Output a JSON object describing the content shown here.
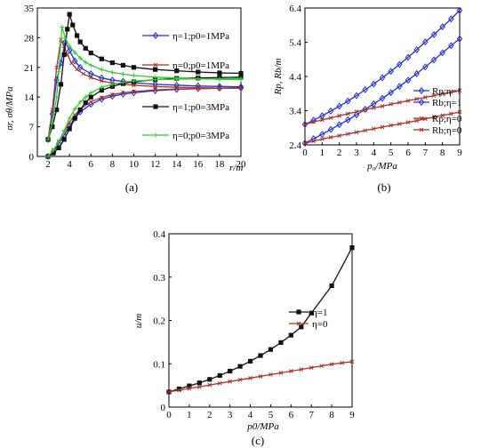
{
  "chart_data": [
    {
      "id": "a",
      "panel_label": "(a)",
      "type": "line",
      "xlabel": "r/m",
      "ylabel": "σr, σθ/MPa",
      "xlim": [
        1,
        20
      ],
      "ylim": [
        0,
        35
      ],
      "xticks": [
        "2",
        "4",
        "6",
        "8",
        "10",
        "12",
        "14",
        "16",
        "18",
        "20"
      ],
      "yticks": [
        "0",
        "7",
        "14",
        "21",
        "28",
        "35"
      ],
      "legend": [
        {
          "label": "η=1;p0=1MPa",
          "color": "#1f2fd6"
        },
        {
          "label": "η=0;p0=1MPa",
          "color": "#a8332b"
        },
        {
          "label": "η=1;p0=3MPa",
          "color": "#111111"
        },
        {
          "label": "η=0;p0=3MPa",
          "color": "#33cc33"
        }
      ],
      "series": [
        {
          "name": "η=1;p0=1MPa",
          "color": "#1f2fd6",
          "marker": "diamond",
          "x": [
            2,
            2.4,
            2.8,
            3.2,
            3.6,
            4,
            4.5,
            5,
            6,
            7,
            8,
            9,
            10,
            12,
            14,
            16,
            18,
            20
          ],
          "y": [
            4,
            10,
            18,
            22,
            27,
            25,
            22.5,
            21,
            19.5,
            18.5,
            18,
            17.7,
            17.4,
            17,
            16.8,
            16.6,
            16.5,
            16.4
          ]
        },
        {
          "name": "",
          "color": "#1f2fd6",
          "marker": "diamond",
          "x": [
            2,
            2.5,
            3,
            3.5,
            4,
            4.5,
            5,
            6,
            7,
            8,
            9,
            10,
            12,
            14,
            16,
            18,
            20
          ],
          "y": [
            0,
            1,
            3,
            5,
            7.2,
            9,
            10.5,
            12.3,
            13.5,
            14.2,
            14.7,
            15,
            15.5,
            15.8,
            16,
            16.1,
            16.2
          ]
        },
        {
          "name": "η=0;p0=1MPa",
          "color": "#a8332b",
          "marker": "x",
          "x": [
            2,
            2.4,
            2.8,
            3.2,
            3.5,
            3.8,
            4.2,
            4.7,
            5.3,
            6,
            7,
            8,
            9,
            10,
            12,
            14,
            16,
            18,
            20
          ],
          "y": [
            4,
            11,
            21,
            27.5,
            26,
            24,
            22,
            20.5,
            19.5,
            18.6,
            17.8,
            17.3,
            17,
            16.8,
            16.5,
            16.3,
            16.2,
            16.1,
            16.1
          ]
        },
        {
          "name": "",
          "color": "#a8332b",
          "marker": "x",
          "x": [
            2,
            2.5,
            3,
            3.5,
            4,
            4.5,
            5,
            6,
            7,
            8,
            9,
            10,
            12,
            14,
            16,
            18,
            20
          ],
          "y": [
            0,
            1.5,
            3.5,
            5.8,
            8,
            9.8,
            11.2,
            12.9,
            13.9,
            14.6,
            15,
            15.3,
            15.7,
            15.9,
            16,
            16.1,
            16.1
          ]
        },
        {
          "name": "η=1;p0=3MPa",
          "color": "#111111",
          "marker": "square",
          "x": [
            2,
            2.4,
            2.8,
            3.2,
            3.5,
            3.8,
            4,
            4.3,
            4.7,
            5,
            5.5,
            6,
            7,
            8,
            9,
            10,
            12,
            14,
            16,
            18,
            20
          ],
          "y": [
            4,
            7,
            11,
            17,
            24,
            30,
            33.5,
            31,
            28.5,
            27,
            25.5,
            24.4,
            23,
            22.1,
            21.5,
            21,
            20.5,
            20.2,
            19.9,
            19.7,
            19.6
          ]
        },
        {
          "name": "",
          "color": "#111111",
          "marker": "square",
          "x": [
            2,
            2.5,
            3,
            3.5,
            4,
            4.5,
            5,
            5.5,
            6,
            7,
            8,
            9,
            10,
            12,
            14,
            16,
            18,
            20
          ],
          "y": [
            0,
            0.8,
            2,
            4,
            6.5,
            9,
            11,
            12.7,
            14,
            15.6,
            16.5,
            17.2,
            17.6,
            18.1,
            18.4,
            18.5,
            18.6,
            18.7
          ]
        },
        {
          "name": "η=0;p0=3MPa",
          "color": "#33cc33",
          "marker": "plus",
          "x": [
            2,
            2.4,
            2.8,
            3,
            3.3,
            3.6,
            4,
            4.5,
            5,
            5.5,
            6,
            7,
            8,
            9,
            10,
            12,
            14,
            16,
            18,
            20
          ],
          "y": [
            4,
            8,
            14,
            20,
            30.5,
            28,
            26,
            24.5,
            23.2,
            22.2,
            21.5,
            20.5,
            19.8,
            19.4,
            19.1,
            18.7,
            18.5,
            18.3,
            18.2,
            18.1
          ]
        },
        {
          "name": "",
          "color": "#33cc33",
          "marker": "plus",
          "x": [
            2,
            2.5,
            3,
            3.5,
            4,
            4.5,
            5,
            5.5,
            6,
            7,
            8,
            9,
            10,
            12,
            14,
            16,
            18,
            20
          ],
          "y": [
            0,
            1.5,
            3.5,
            6,
            9,
            11.2,
            12.8,
            14,
            15,
            16.3,
            17,
            17.5,
            17.8,
            18.1,
            18.2,
            18.3,
            18.3,
            18.4
          ]
        }
      ]
    },
    {
      "id": "b",
      "panel_label": "(b)",
      "type": "line",
      "xlabel": "p₀/MPa",
      "ylabel": "Rp, Rb/m",
      "xlim": [
        0,
        9
      ],
      "ylim": [
        2.4,
        6.4
      ],
      "xticks": [
        "0",
        "1",
        "2",
        "3",
        "4",
        "5",
        "6",
        "7",
        "8",
        "9"
      ],
      "yticks": [
        "2.4",
        "3.4",
        "4.4",
        "5.4",
        "6.4"
      ],
      "legend_top": [
        {
          "label": "Rp;η=1",
          "color": "#1f2fd6"
        },
        {
          "label": "Rb;η=1",
          "color": "#1f2fd6"
        }
      ],
      "legend_bottom": [
        {
          "label": "Rp;η=0",
          "color": "#a8332b"
        },
        {
          "label": "Rb;η=0",
          "color": "#a8332b"
        }
      ],
      "series": [
        {
          "name": "Rp;η=1",
          "color": "#1f2fd6",
          "marker": "diamond",
          "x": [
            0,
            0.5,
            1,
            1.5,
            2,
            2.5,
            3,
            3.5,
            4,
            4.5,
            5,
            5.5,
            6,
            6.5,
            7,
            7.5,
            8,
            8.5,
            9
          ],
          "y": [
            3.0,
            3.12,
            3.25,
            3.39,
            3.53,
            3.68,
            3.84,
            4.01,
            4.18,
            4.36,
            4.55,
            4.75,
            4.96,
            5.18,
            5.41,
            5.62,
            5.85,
            6.08,
            6.33
          ]
        },
        {
          "name": "Rb;η=1",
          "color": "#1f2fd6",
          "marker": "diamond",
          "x": [
            0,
            0.5,
            1,
            1.5,
            2,
            2.5,
            3,
            3.5,
            4,
            4.5,
            5,
            5.5,
            6,
            6.5,
            7,
            7.5,
            8,
            8.5,
            9
          ],
          "y": [
            2.45,
            2.58,
            2.71,
            2.85,
            2.99,
            3.13,
            3.28,
            3.44,
            3.6,
            3.76,
            3.93,
            4.11,
            4.29,
            4.48,
            4.68,
            4.88,
            5.09,
            5.3,
            5.5
          ]
        },
        {
          "name": "Rp;η=0",
          "color": "#a8332b",
          "marker": "x",
          "x": [
            0,
            0.5,
            1,
            1.5,
            2,
            2.5,
            3,
            3.5,
            4,
            4.5,
            5,
            5.5,
            6,
            6.5,
            7,
            7.5,
            8,
            8.5,
            9
          ],
          "y": [
            3.0,
            3.07,
            3.13,
            3.19,
            3.25,
            3.31,
            3.37,
            3.43,
            3.48,
            3.53,
            3.59,
            3.64,
            3.69,
            3.74,
            3.79,
            3.84,
            3.89,
            3.94,
            3.99
          ]
        },
        {
          "name": "Rb;η=0",
          "color": "#a8332b",
          "marker": "x",
          "x": [
            0,
            0.5,
            1,
            1.5,
            2,
            2.5,
            3,
            3.5,
            4,
            4.5,
            5,
            5.5,
            6,
            6.5,
            7,
            7.5,
            8,
            8.5,
            9
          ],
          "y": [
            2.45,
            2.51,
            2.57,
            2.62,
            2.67,
            2.72,
            2.77,
            2.82,
            2.87,
            2.92,
            2.97,
            3.01,
            3.06,
            3.11,
            3.16,
            3.21,
            3.26,
            3.31,
            3.36
          ]
        }
      ]
    },
    {
      "id": "c",
      "panel_label": "(c)",
      "type": "line",
      "xlabel": "p0/MPa",
      "ylabel": "u/m",
      "xlim": [
        0,
        9
      ],
      "ylim": [
        0,
        0.4
      ],
      "xticks": [
        "0",
        "1",
        "2",
        "3",
        "4",
        "5",
        "6",
        "7",
        "8",
        "9"
      ],
      "yticks": [
        "0",
        "0.1",
        "0.2",
        "0.3",
        "0.4"
      ],
      "legend": [
        {
          "label": "η=1",
          "color": "#111111"
        },
        {
          "label": "η=0",
          "color": "#a8332b"
        }
      ],
      "series": [
        {
          "name": "η=1",
          "color": "#111111",
          "marker": "square",
          "x": [
            0,
            0.5,
            1,
            1.5,
            2,
            2.5,
            3,
            3.5,
            4,
            4.5,
            5,
            5.5,
            6,
            6.5,
            7,
            8,
            9
          ],
          "y": [
            0.035,
            0.042,
            0.049,
            0.056,
            0.064,
            0.073,
            0.083,
            0.094,
            0.106,
            0.119,
            0.133,
            0.149,
            0.166,
            0.185,
            0.217,
            0.28,
            0.368
          ]
        },
        {
          "name": "η=0",
          "color": "#a8332b",
          "marker": "x",
          "x": [
            0,
            0.5,
            1,
            1.5,
            2,
            2.5,
            3,
            3.5,
            4,
            4.5,
            5,
            5.5,
            6,
            6.5,
            7,
            7.5,
            8,
            8.5,
            9
          ],
          "y": [
            0.035,
            0.039,
            0.043,
            0.047,
            0.051,
            0.055,
            0.059,
            0.063,
            0.067,
            0.071,
            0.075,
            0.079,
            0.083,
            0.087,
            0.091,
            0.095,
            0.099,
            0.102,
            0.105
          ]
        }
      ]
    }
  ]
}
